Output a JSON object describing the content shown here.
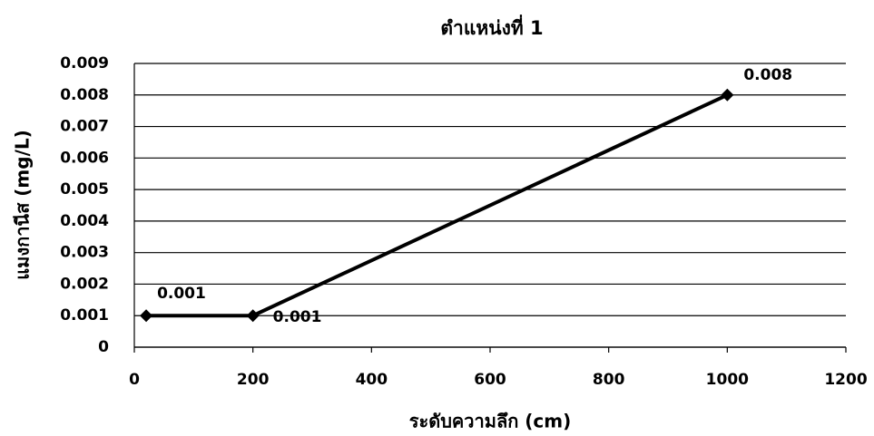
{
  "chart_data": {
    "type": "line",
    "title": "ตำแหน่งที่ 1",
    "x_label": "ระดับความลึก (cm)",
    "y_label": "แมงกานีส (mg/L)",
    "x": [
      20,
      200,
      1000
    ],
    "series": [
      {
        "name": "ตำแหน่งที่ 1",
        "color": "#000000",
        "values": [
          0.001,
          0.001,
          0.008
        ]
      }
    ],
    "xlim": [
      0,
      1200
    ],
    "xticks": [
      0,
      200,
      400,
      600,
      800,
      1000,
      1200
    ],
    "ylim": [
      0,
      0.009
    ],
    "yticks": [
      0,
      0.001,
      0.002,
      0.003,
      0.004,
      0.005,
      0.006,
      0.007,
      0.008,
      0.009
    ],
    "grid": true,
    "data_labels": true
  }
}
